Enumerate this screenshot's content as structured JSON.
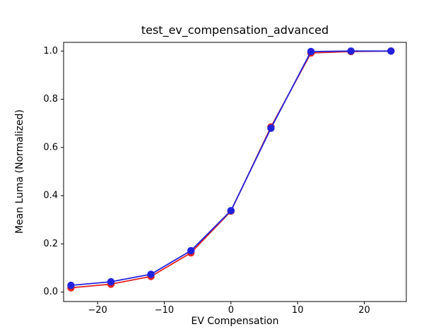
{
  "figure": {
    "title": "test_ev_compensation_advanced",
    "xlabel": "EV Compensation",
    "ylabel": "Mean Luma (Normalized)"
  },
  "chart_data": {
    "type": "line",
    "title": "test_ev_compensation_advanced",
    "xlabel": "EV Compensation",
    "ylabel": "Mean Luma (Normalized)",
    "x": [
      -24,
      -18,
      -12,
      -6,
      0,
      6,
      12,
      18,
      24
    ],
    "series": [
      {
        "name": "red-line",
        "color": "#e32222",
        "marker": "circle",
        "values": [
          0.018,
          0.033,
          0.065,
          0.163,
          0.336,
          0.685,
          0.992,
          0.998,
          1.0
        ]
      },
      {
        "name": "blue-line",
        "color": "#2222dd",
        "marker": "circle",
        "values": [
          0.028,
          0.043,
          0.074,
          0.172,
          0.338,
          0.68,
          0.998,
          1.0,
          1.0
        ]
      }
    ],
    "xlim": [
      -25.1,
      26.3
    ],
    "ylim": [
      -0.039,
      1.036
    ],
    "xticks": {
      "values": [
        -20,
        -10,
        0,
        10,
        20
      ],
      "labels": [
        "−20",
        "−10",
        "0",
        "10",
        "20"
      ]
    },
    "yticks": {
      "values": [
        0.0,
        0.2,
        0.4,
        0.6,
        0.8,
        1.0
      ],
      "labels": [
        "0.0",
        "0.2",
        "0.4",
        "0.6",
        "0.8",
        "1.0"
      ]
    },
    "grid": false,
    "legend": null,
    "background": "#ffffff",
    "spine_color": "#000000"
  }
}
